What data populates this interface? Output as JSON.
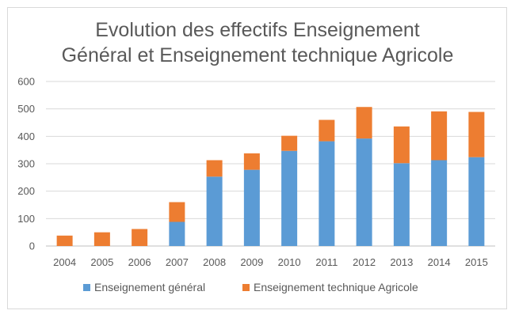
{
  "chart_data": {
    "type": "bar",
    "stacked": true,
    "title_lines": [
      "Evolution des effectifs Enseignement",
      "Général et Enseignement technique Agricole"
    ],
    "categories": [
      "2004",
      "2005",
      "2006",
      "2007",
      "2008",
      "2009",
      "2010",
      "2011",
      "2012",
      "2013",
      "2014",
      "2015"
    ],
    "series": [
      {
        "name": "Enseignement général",
        "color": "#5b9bd5",
        "values": [
          0,
          0,
          0,
          88,
          253,
          278,
          347,
          382,
          392,
          302,
          313,
          324
        ]
      },
      {
        "name": "Enseignement technique Agricole",
        "color": "#ed7d31",
        "values": [
          38,
          50,
          62,
          72,
          60,
          60,
          55,
          78,
          115,
          134,
          178,
          165
        ]
      }
    ],
    "ylim": [
      0,
      600
    ],
    "yticks": [
      0,
      100,
      200,
      300,
      400,
      500,
      600
    ],
    "grid": true,
    "legend_position": "bottom"
  }
}
